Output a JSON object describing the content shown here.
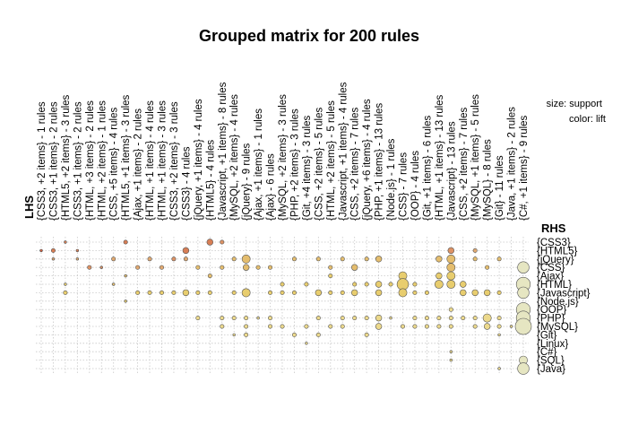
{
  "chart_data": {
    "type": "scatter",
    "title": "Grouped matrix for 200 rules",
    "xlabel": "LHS",
    "ylabel": "RHS",
    "legend": [
      "size: support",
      "color: lift"
    ],
    "lhs_groups": [
      "{CSS3, +2 items} - 1 rules",
      "{CSS3, +1 items} - 2 rules",
      "{HTML5, +2 items} - 3 rules",
      "{CSS3, +1 items} - 2 rules",
      "{HTML, +3 items} - 2 rules",
      "{HTML, +2 items} - 1 rules",
      "{CSS, +5 items} - 4 rules",
      "{HTML5, +1 items} - 3 rules",
      "{Ajax, +1 items} - 2 rules",
      "{HTML, +1 items} - 4 rules",
      "{HTML, +1 items} - 3 rules",
      "{CSS3, +2 items} - 3 rules",
      "{CSS3} - 4 rules",
      "{jQuery, +1 items} - 4 rules",
      "{HTML5} - 4 rules",
      "{Javascript, +1 items} - 8 rules",
      "{MySQL, +2 items} - 4 rules",
      "{jQuery} - 9 rules",
      "{Ajax, +1 items} - 1 rules",
      "{Ajax} - 6 rules",
      "{MySQL, +2 items} - 3 rules",
      "{PHP, +2 items} - 3 rules",
      "{Git, +4 items} - 3 rules",
      "{CSS, +2 items} - 5 rules",
      "{HTML, +2 items} - 5 rules",
      "{Javascript, +1 items} - 4 rules",
      "{CSS, +2 items} - 7 rules",
      "{jQuery, +6 items} - 4 rules",
      "{PHP, +1 items} - 13 rules",
      "{Node.js} - 1 rules",
      "{CSS} - 7 rules",
      "{OOP} - 4 rules",
      "{Git, +1 items} - 6 rules",
      "{HTML, +1 items} - 13 rules",
      "{Javascript} - 13 rules",
      "{CSS, +2 items} - 7 rules",
      "{MySQL, +1 items} - 5 rules",
      "{MySQL} - 8 rules",
      "{Git} - 11 rules",
      "{Java, +1 items} - 2 rules",
      "{C#, +1 items} - 9 rules"
    ],
    "rhs_items": [
      "{CSS3}",
      "{HTML5}",
      "{jQuery}",
      "{CSS}",
      "{Ajax}",
      "{HTML}",
      "{Javascript}",
      "{Node.js}",
      "{OOP}",
      "{PHP}",
      "{MySQL}",
      "{Git}",
      "{Linux}",
      "{C#}",
      "{SQL}",
      "{Java}"
    ],
    "points": [
      {
        "lhs": 0,
        "rhs": 1,
        "support": 1,
        "lift": 9
      },
      {
        "lhs": 1,
        "rhs": 1,
        "support": 2,
        "lift": 8
      },
      {
        "lhs": 1,
        "rhs": 2,
        "support": 1,
        "lift": 5
      },
      {
        "lhs": 2,
        "rhs": 0,
        "support": 1,
        "lift": 8
      },
      {
        "lhs": 2,
        "rhs": 5,
        "support": 1,
        "lift": 3
      },
      {
        "lhs": 2,
        "rhs": 6,
        "support": 2,
        "lift": 3
      },
      {
        "lhs": 3,
        "rhs": 1,
        "support": 1,
        "lift": 7
      },
      {
        "lhs": 3,
        "rhs": 2,
        "support": 1,
        "lift": 5
      },
      {
        "lhs": 4,
        "rhs": 3,
        "support": 2,
        "lift": 6
      },
      {
        "lhs": 5,
        "rhs": 3,
        "support": 1,
        "lift": 6
      },
      {
        "lhs": 6,
        "rhs": 2,
        "support": 2,
        "lift": 5
      },
      {
        "lhs": 6,
        "rhs": 5,
        "support": 1,
        "lift": 4
      },
      {
        "lhs": 7,
        "rhs": 0,
        "support": 2,
        "lift": 8
      },
      {
        "lhs": 7,
        "rhs": 4,
        "support": 1,
        "lift": 4
      },
      {
        "lhs": 7,
        "rhs": 7,
        "support": 1,
        "lift": 3
      },
      {
        "lhs": 8,
        "rhs": 3,
        "support": 2,
        "lift": 5
      },
      {
        "lhs": 8,
        "rhs": 6,
        "support": 2,
        "lift": 3
      },
      {
        "lhs": 9,
        "rhs": 2,
        "support": 2,
        "lift": 5
      },
      {
        "lhs": 9,
        "rhs": 6,
        "support": 2,
        "lift": 3
      },
      {
        "lhs": 10,
        "rhs": 3,
        "support": 2,
        "lift": 5
      },
      {
        "lhs": 10,
        "rhs": 6,
        "support": 2,
        "lift": 3
      },
      {
        "lhs": 11,
        "rhs": 2,
        "support": 2,
        "lift": 6
      },
      {
        "lhs": 11,
        "rhs": 6,
        "support": 2,
        "lift": 3
      },
      {
        "lhs": 12,
        "rhs": 1,
        "support": 3,
        "lift": 7
      },
      {
        "lhs": 12,
        "rhs": 2,
        "support": 2,
        "lift": 5
      },
      {
        "lhs": 12,
        "rhs": 6,
        "support": 3,
        "lift": 3
      },
      {
        "lhs": 13,
        "rhs": 3,
        "support": 2,
        "lift": 4
      },
      {
        "lhs": 13,
        "rhs": 6,
        "support": 2,
        "lift": 3
      },
      {
        "lhs": 13,
        "rhs": 9,
        "support": 2,
        "lift": 2
      },
      {
        "lhs": 14,
        "rhs": 0,
        "support": 3,
        "lift": 8
      },
      {
        "lhs": 14,
        "rhs": 4,
        "support": 2,
        "lift": 4
      },
      {
        "lhs": 14,
        "rhs": 6,
        "support": 2,
        "lift": 3
      },
      {
        "lhs": 15,
        "rhs": 0,
        "support": 2,
        "lift": 6
      },
      {
        "lhs": 15,
        "rhs": 3,
        "support": 2,
        "lift": 4
      },
      {
        "lhs": 15,
        "rhs": 9,
        "support": 2,
        "lift": 2
      },
      {
        "lhs": 15,
        "rhs": 10,
        "support": 2,
        "lift": 2
      },
      {
        "lhs": 16,
        "rhs": 2,
        "support": 2,
        "lift": 4
      },
      {
        "lhs": 16,
        "rhs": 6,
        "support": 2,
        "lift": 3
      },
      {
        "lhs": 16,
        "rhs": 9,
        "support": 2,
        "lift": 2
      },
      {
        "lhs": 16,
        "rhs": 11,
        "support": 1,
        "lift": 2
      },
      {
        "lhs": 17,
        "rhs": 2,
        "support": 4,
        "lift": 4
      },
      {
        "lhs": 17,
        "rhs": 3,
        "support": 3,
        "lift": 4
      },
      {
        "lhs": 17,
        "rhs": 6,
        "support": 4,
        "lift": 3
      },
      {
        "lhs": 17,
        "rhs": 9,
        "support": 2,
        "lift": 2
      },
      {
        "lhs": 17,
        "rhs": 10,
        "support": 2,
        "lift": 2
      },
      {
        "lhs": 17,
        "rhs": 11,
        "support": 2,
        "lift": 2
      },
      {
        "lhs": 18,
        "rhs": 3,
        "support": 2,
        "lift": 4
      },
      {
        "lhs": 18,
        "rhs": 9,
        "support": 1,
        "lift": 2
      },
      {
        "lhs": 19,
        "rhs": 3,
        "support": 2,
        "lift": 4
      },
      {
        "lhs": 19,
        "rhs": 6,
        "support": 2,
        "lift": 3
      },
      {
        "lhs": 19,
        "rhs": 9,
        "support": 2,
        "lift": 2
      },
      {
        "lhs": 19,
        "rhs": 10,
        "support": 2,
        "lift": 2
      },
      {
        "lhs": 20,
        "rhs": 5,
        "support": 2,
        "lift": 3
      },
      {
        "lhs": 20,
        "rhs": 6,
        "support": 2,
        "lift": 3
      },
      {
        "lhs": 20,
        "rhs": 10,
        "support": 2,
        "lift": 2
      },
      {
        "lhs": 21,
        "rhs": 2,
        "support": 2,
        "lift": 4
      },
      {
        "lhs": 21,
        "rhs": 6,
        "support": 2,
        "lift": 3
      },
      {
        "lhs": 21,
        "rhs": 11,
        "support": 2,
        "lift": 2
      },
      {
        "lhs": 22,
        "rhs": 5,
        "support": 2,
        "lift": 3
      },
      {
        "lhs": 22,
        "rhs": 10,
        "support": 2,
        "lift": 2
      },
      {
        "lhs": 22,
        "rhs": 12,
        "support": 1,
        "lift": 2
      },
      {
        "lhs": 23,
        "rhs": 2,
        "support": 2,
        "lift": 4
      },
      {
        "lhs": 23,
        "rhs": 6,
        "support": 3,
        "lift": 3
      },
      {
        "lhs": 23,
        "rhs": 9,
        "support": 2,
        "lift": 2
      },
      {
        "lhs": 23,
        "rhs": 11,
        "support": 2,
        "lift": 2
      },
      {
        "lhs": 24,
        "rhs": 3,
        "support": 2,
        "lift": 4
      },
      {
        "lhs": 24,
        "rhs": 4,
        "support": 2,
        "lift": 3
      },
      {
        "lhs": 24,
        "rhs": 6,
        "support": 2,
        "lift": 3
      },
      {
        "lhs": 24,
        "rhs": 10,
        "support": 2,
        "lift": 2
      },
      {
        "lhs": 25,
        "rhs": 2,
        "support": 2,
        "lift": 4
      },
      {
        "lhs": 25,
        "rhs": 6,
        "support": 2,
        "lift": 3
      },
      {
        "lhs": 25,
        "rhs": 9,
        "support": 2,
        "lift": 2
      },
      {
        "lhs": 25,
        "rhs": 10,
        "support": 2,
        "lift": 2
      },
      {
        "lhs": 26,
        "rhs": 3,
        "support": 3,
        "lift": 4
      },
      {
        "lhs": 26,
        "rhs": 5,
        "support": 2,
        "lift": 3
      },
      {
        "lhs": 26,
        "rhs": 6,
        "support": 3,
        "lift": 3
      },
      {
        "lhs": 26,
        "rhs": 9,
        "support": 2,
        "lift": 2
      },
      {
        "lhs": 27,
        "rhs": 2,
        "support": 2,
        "lift": 4
      },
      {
        "lhs": 27,
        "rhs": 5,
        "support": 2,
        "lift": 3
      },
      {
        "lhs": 27,
        "rhs": 9,
        "support": 2,
        "lift": 2
      },
      {
        "lhs": 27,
        "rhs": 11,
        "support": 2,
        "lift": 2
      },
      {
        "lhs": 28,
        "rhs": 2,
        "support": 3,
        "lift": 4
      },
      {
        "lhs": 28,
        "rhs": 5,
        "support": 3,
        "lift": 3
      },
      {
        "lhs": 28,
        "rhs": 6,
        "support": 3,
        "lift": 3
      },
      {
        "lhs": 28,
        "rhs": 9,
        "support": 3,
        "lift": 2
      },
      {
        "lhs": 28,
        "rhs": 10,
        "support": 3,
        "lift": 2
      },
      {
        "lhs": 29,
        "rhs": 5,
        "support": 2,
        "lift": 3
      },
      {
        "lhs": 29,
        "rhs": 9,
        "support": 1,
        "lift": 2
      },
      {
        "lhs": 30,
        "rhs": 4,
        "support": 4,
        "lift": 3
      },
      {
        "lhs": 30,
        "rhs": 5,
        "support": 5,
        "lift": 3
      },
      {
        "lhs": 30,
        "rhs": 6,
        "support": 4,
        "lift": 3
      },
      {
        "lhs": 30,
        "rhs": 10,
        "support": 2,
        "lift": 2
      },
      {
        "lhs": 31,
        "rhs": 5,
        "support": 2,
        "lift": 3
      },
      {
        "lhs": 31,
        "rhs": 6,
        "support": 2,
        "lift": 3
      },
      {
        "lhs": 31,
        "rhs": 9,
        "support": 2,
        "lift": 2
      },
      {
        "lhs": 31,
        "rhs": 10,
        "support": 2,
        "lift": 2
      },
      {
        "lhs": 32,
        "rhs": 6,
        "support": 2,
        "lift": 3
      },
      {
        "lhs": 32,
        "rhs": 9,
        "support": 2,
        "lift": 2
      },
      {
        "lhs": 32,
        "rhs": 10,
        "support": 2,
        "lift": 2
      },
      {
        "lhs": 33,
        "rhs": 2,
        "support": 3,
        "lift": 4
      },
      {
        "lhs": 33,
        "rhs": 4,
        "support": 3,
        "lift": 3
      },
      {
        "lhs": 33,
        "rhs": 5,
        "support": 4,
        "lift": 3
      },
      {
        "lhs": 33,
        "rhs": 9,
        "support": 2,
        "lift": 2
      },
      {
        "lhs": 33,
        "rhs": 10,
        "support": 2,
        "lift": 2
      },
      {
        "lhs": 34,
        "rhs": 1,
        "support": 3,
        "lift": 6
      },
      {
        "lhs": 34,
        "rhs": 2,
        "support": 4,
        "lift": 4
      },
      {
        "lhs": 34,
        "rhs": 3,
        "support": 4,
        "lift": 4
      },
      {
        "lhs": 34,
        "rhs": 4,
        "support": 4,
        "lift": 3
      },
      {
        "lhs": 34,
        "rhs": 5,
        "support": 4,
        "lift": 3
      },
      {
        "lhs": 34,
        "rhs": 8,
        "support": 2,
        "lift": 2
      },
      {
        "lhs": 34,
        "rhs": 9,
        "support": 2,
        "lift": 2
      },
      {
        "lhs": 34,
        "rhs": 10,
        "support": 2,
        "lift": 2
      },
      {
        "lhs": 34,
        "rhs": 13,
        "support": 1,
        "lift": 2
      },
      {
        "lhs": 34,
        "rhs": 14,
        "support": 1,
        "lift": 2
      },
      {
        "lhs": 35,
        "rhs": 5,
        "support": 3,
        "lift": 3
      },
      {
        "lhs": 35,
        "rhs": 6,
        "support": 3,
        "lift": 3
      },
      {
        "lhs": 35,
        "rhs": 9,
        "support": 2,
        "lift": 2
      },
      {
        "lhs": 36,
        "rhs": 1,
        "support": 2,
        "lift": 5
      },
      {
        "lhs": 36,
        "rhs": 2,
        "support": 2,
        "lift": 4
      },
      {
        "lhs": 36,
        "rhs": 6,
        "support": 3,
        "lift": 3
      },
      {
        "lhs": 36,
        "rhs": 9,
        "support": 2,
        "lift": 2
      },
      {
        "lhs": 36,
        "rhs": 10,
        "support": 2,
        "lift": 2
      },
      {
        "lhs": 37,
        "rhs": 3,
        "support": 2,
        "lift": 4
      },
      {
        "lhs": 37,
        "rhs": 6,
        "support": 3,
        "lift": 3
      },
      {
        "lhs": 37,
        "rhs": 9,
        "support": 4,
        "lift": 2
      },
      {
        "lhs": 37,
        "rhs": 10,
        "support": 3,
        "lift": 2
      },
      {
        "lhs": 38,
        "rhs": 2,
        "support": 2,
        "lift": 4
      },
      {
        "lhs": 38,
        "rhs": 6,
        "support": 2,
        "lift": 3
      },
      {
        "lhs": 38,
        "rhs": 9,
        "support": 2,
        "lift": 2
      },
      {
        "lhs": 38,
        "rhs": 10,
        "support": 2,
        "lift": 2
      },
      {
        "lhs": 38,
        "rhs": 11,
        "support": 1,
        "lift": 2
      },
      {
        "lhs": 38,
        "rhs": 15,
        "support": 1,
        "lift": 2
      },
      {
        "lhs": 39,
        "rhs": 10,
        "support": 1,
        "lift": 2
      },
      {
        "lhs": 40,
        "rhs": 3,
        "support": 5,
        "lift": 1
      },
      {
        "lhs": 40,
        "rhs": 5,
        "support": 6,
        "lift": 1
      },
      {
        "lhs": 40,
        "rhs": 6,
        "support": 5,
        "lift": 1
      },
      {
        "lhs": 40,
        "rhs": 8,
        "support": 6,
        "lift": 1
      },
      {
        "lhs": 40,
        "rhs": 9,
        "support": 6,
        "lift": 1
      },
      {
        "lhs": 40,
        "rhs": 10,
        "support": 7,
        "lift": 1
      },
      {
        "lhs": 40,
        "rhs": 14,
        "support": 4,
        "lift": 1
      },
      {
        "lhs": 40,
        "rhs": 15,
        "support": 5,
        "lift": 1
      }
    ]
  }
}
